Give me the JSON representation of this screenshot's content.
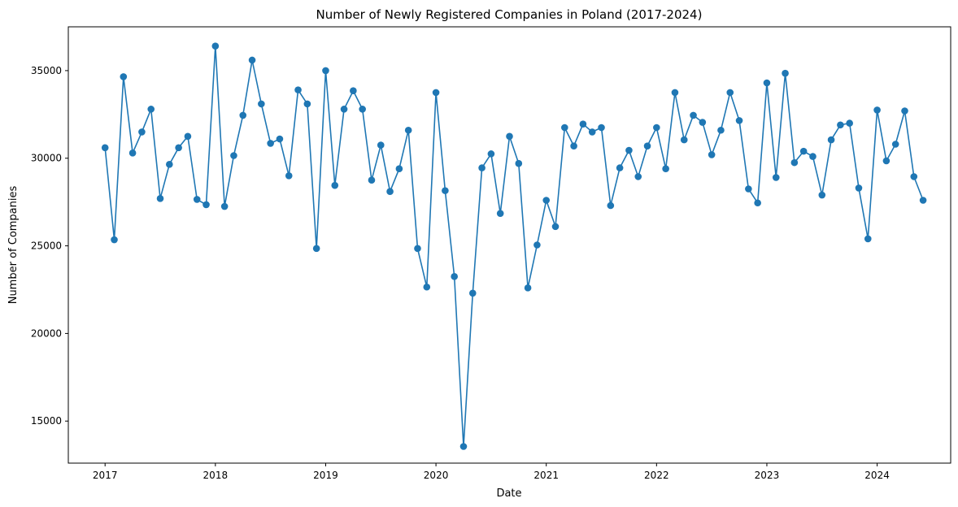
{
  "chart_data": {
    "type": "line",
    "title": "Number of Newly Registered Companies in Poland (2017-2024)",
    "xlabel": "Date",
    "ylabel": "Number of Companies",
    "x_ticks": [
      "2017",
      "2018",
      "2019",
      "2020",
      "2021",
      "2022",
      "2023",
      "2024"
    ],
    "y_ticks": [
      "15000",
      "20000",
      "25000",
      "30000",
      "35000"
    ],
    "ylim": [
      12600,
      37500
    ],
    "xlim": [
      "2016-09",
      "2024-09"
    ],
    "grid": false,
    "legend": "none",
    "series": [
      {
        "color": "#1f77b4",
        "marker": "circle",
        "x": [
          "2017-01",
          "2017-02",
          "2017-03",
          "2017-04",
          "2017-05",
          "2017-06",
          "2017-07",
          "2017-08",
          "2017-09",
          "2017-10",
          "2017-11",
          "2017-12",
          "2018-01",
          "2018-02",
          "2018-03",
          "2018-04",
          "2018-05",
          "2018-06",
          "2018-07",
          "2018-08",
          "2018-09",
          "2018-10",
          "2018-11",
          "2018-12",
          "2019-01",
          "2019-02",
          "2019-03",
          "2019-04",
          "2019-05",
          "2019-06",
          "2019-07",
          "2019-08",
          "2019-09",
          "2019-10",
          "2019-11",
          "2019-12",
          "2020-01",
          "2020-02",
          "2020-03",
          "2020-04",
          "2020-05",
          "2020-06",
          "2020-07",
          "2020-08",
          "2020-09",
          "2020-10",
          "2020-11",
          "2020-12",
          "2021-01",
          "2021-02",
          "2021-03",
          "2021-04",
          "2021-05",
          "2021-06",
          "2021-07",
          "2021-08",
          "2021-09",
          "2021-10",
          "2021-11",
          "2021-12",
          "2022-01",
          "2022-02",
          "2022-03",
          "2022-04",
          "2022-05",
          "2022-06",
          "2022-07",
          "2022-08",
          "2022-09",
          "2022-10",
          "2022-11",
          "2022-12",
          "2023-01",
          "2023-02",
          "2023-03",
          "2023-04",
          "2023-05",
          "2023-06",
          "2023-07",
          "2023-08",
          "2023-09",
          "2023-10",
          "2023-11",
          "2023-12",
          "2024-01",
          "2024-02",
          "2024-03",
          "2024-04",
          "2024-05",
          "2024-06"
        ],
        "y": [
          30600,
          25350,
          34650,
          30300,
          31500,
          32800,
          27700,
          29650,
          30600,
          31250,
          27650,
          27350,
          36400,
          27250,
          30150,
          32450,
          35600,
          33100,
          30850,
          31100,
          29000,
          33900,
          33100,
          24850,
          35000,
          28450,
          32800,
          33850,
          32800,
          28750,
          30750,
          28100,
          29400,
          31600,
          24850,
          22650,
          33750,
          28150,
          23250,
          13550,
          22300,
          29450,
          30250,
          26850,
          31250,
          29700,
          22600,
          25050,
          27600,
          26100,
          31750,
          30700,
          31950,
          31500,
          31750,
          27300,
          29450,
          30450,
          28950,
          30700,
          31750,
          29400,
          33750,
          31050,
          32450,
          32050,
          30200,
          31600,
          33750,
          32150,
          28250,
          27450,
          34300,
          28900,
          34850,
          29750,
          30400,
          30100,
          27900,
          31050,
          31900,
          32000,
          28300,
          25400,
          32750,
          29850,
          30800,
          32700,
          28950,
          27600
        ]
      }
    ]
  }
}
